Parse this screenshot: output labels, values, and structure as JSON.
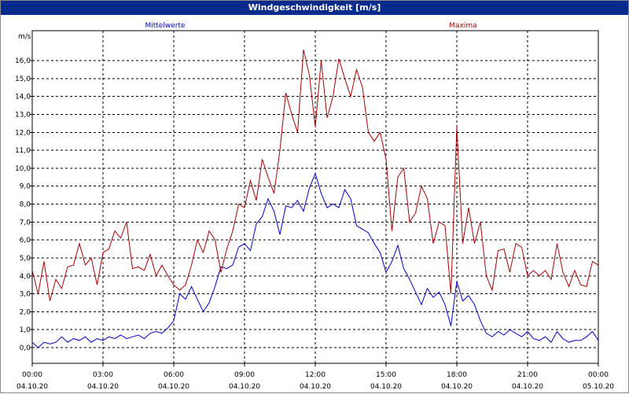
{
  "window": {
    "title": "Windgeschwindigkeit [m/s]"
  },
  "chart_data": {
    "type": "line",
    "title": "Windgeschwindigkeit [m/s]",
    "ylabel": "m/s",
    "ylim": [
      -1,
      17
    ],
    "yticks": [
      "0,0",
      "1,0",
      "2,0",
      "3,0",
      "4,0",
      "5,0",
      "6,0",
      "7,0",
      "8,0",
      "9,0",
      "10,0",
      "11,0",
      "12,0",
      "13,0",
      "14,0",
      "15,0",
      "16,0"
    ],
    "xlim": [
      0,
      24
    ],
    "xticks": [
      {
        "time": "00:00",
        "date": "04.10.20"
      },
      {
        "time": "03:00",
        "date": "04.10.20"
      },
      {
        "time": "06:00",
        "date": "04.10.20"
      },
      {
        "time": "09:00",
        "date": "04.10.20"
      },
      {
        "time": "12:00",
        "date": "04.10.20"
      },
      {
        "time": "15:00",
        "date": "04.10.20"
      },
      {
        "time": "18:00",
        "date": "04.10.20"
      },
      {
        "time": "21:00",
        "date": "04.10.20"
      },
      {
        "time": "00:00",
        "date": "05.10.20"
      }
    ],
    "grid": true,
    "series": [
      {
        "name": "Mittelwerte",
        "color": "#0000cc",
        "x": [
          0.0,
          0.25,
          0.5,
          0.75,
          1.0,
          1.25,
          1.5,
          1.75,
          2.0,
          2.25,
          2.5,
          2.75,
          3.0,
          3.25,
          3.5,
          3.75,
          4.0,
          4.25,
          4.5,
          4.75,
          5.0,
          5.25,
          5.5,
          5.75,
          6.0,
          6.25,
          6.5,
          6.75,
          7.0,
          7.25,
          7.5,
          7.75,
          8.0,
          8.25,
          8.5,
          8.75,
          9.0,
          9.25,
          9.5,
          9.75,
          10.0,
          10.25,
          10.5,
          10.75,
          11.0,
          11.25,
          11.5,
          11.75,
          12.0,
          12.25,
          12.5,
          12.75,
          13.0,
          13.25,
          13.5,
          13.75,
          14.0,
          14.25,
          14.5,
          14.75,
          15.0,
          15.25,
          15.5,
          15.75,
          16.0,
          16.25,
          16.5,
          16.75,
          17.0,
          17.25,
          17.5,
          17.75,
          18.0,
          18.25,
          18.5,
          18.75,
          19.0,
          19.25,
          19.5,
          19.75,
          20.0,
          20.25,
          20.5,
          20.75,
          21.0,
          21.25,
          21.5,
          21.75,
          22.0,
          22.25,
          22.5,
          22.75,
          23.0,
          23.25,
          23.5,
          23.75,
          24.0
        ],
        "values": [
          0.3,
          0.0,
          0.3,
          0.2,
          0.3,
          0.6,
          0.3,
          0.5,
          0.4,
          0.6,
          0.3,
          0.5,
          0.4,
          0.6,
          0.5,
          0.7,
          0.5,
          0.6,
          0.7,
          0.5,
          0.8,
          0.9,
          0.8,
          1.1,
          1.5,
          3.0,
          2.7,
          3.4,
          2.7,
          2.0,
          2.5,
          3.4,
          4.5,
          4.4,
          4.6,
          5.6,
          5.8,
          5.4,
          6.9,
          7.3,
          8.3,
          7.6,
          6.3,
          7.9,
          7.8,
          8.2,
          7.6,
          8.9,
          9.7,
          8.6,
          7.8,
          8.0,
          7.8,
          8.8,
          8.3,
          6.8,
          6.6,
          6.4,
          5.8,
          5.3,
          4.2,
          4.8,
          5.7,
          4.4,
          3.8,
          3.1,
          2.4,
          3.3,
          2.8,
          3.1,
          2.4,
          1.2,
          3.7,
          2.6,
          2.9,
          2.4,
          1.5,
          0.8,
          0.6,
          0.9,
          0.7,
          1.0,
          0.8,
          0.6,
          0.9,
          0.5,
          0.4,
          0.6,
          0.3,
          0.9,
          0.5,
          0.3,
          0.4,
          0.4,
          0.6,
          0.9,
          0.4
        ]
      },
      {
        "name": "Maxima",
        "color": "#aa0000",
        "x": [
          0.0,
          0.25,
          0.5,
          0.75,
          1.0,
          1.25,
          1.5,
          1.75,
          2.0,
          2.25,
          2.5,
          2.75,
          3.0,
          3.25,
          3.5,
          3.75,
          4.0,
          4.25,
          4.5,
          4.75,
          5.0,
          5.25,
          5.5,
          5.75,
          6.0,
          6.25,
          6.5,
          6.75,
          7.0,
          7.25,
          7.5,
          7.75,
          8.0,
          8.25,
          8.5,
          8.75,
          9.0,
          9.25,
          9.5,
          9.75,
          10.0,
          10.25,
          10.5,
          10.75,
          11.0,
          11.25,
          11.5,
          11.75,
          12.0,
          12.25,
          12.5,
          12.75,
          13.0,
          13.25,
          13.5,
          13.75,
          14.0,
          14.25,
          14.5,
          14.75,
          15.0,
          15.25,
          15.5,
          15.75,
          16.0,
          16.25,
          16.5,
          16.75,
          17.0,
          17.25,
          17.5,
          17.75,
          18.0,
          18.25,
          18.5,
          18.75,
          19.0,
          19.25,
          19.5,
          19.75,
          20.0,
          20.25,
          20.5,
          20.75,
          21.0,
          21.25,
          21.5,
          21.75,
          22.0,
          22.25,
          22.5,
          22.75,
          23.0,
          23.25,
          23.5,
          23.75,
          24.0
        ],
        "values": [
          4.3,
          3.0,
          4.8,
          2.6,
          3.8,
          3.3,
          4.5,
          4.6,
          5.8,
          4.6,
          5.0,
          3.5,
          5.3,
          5.5,
          6.5,
          6.1,
          7.0,
          4.4,
          4.5,
          4.3,
          5.2,
          4.0,
          4.6,
          4.0,
          3.5,
          3.2,
          3.5,
          4.6,
          6.0,
          5.3,
          6.5,
          6.0,
          4.2,
          5.5,
          6.5,
          8.0,
          7.8,
          9.3,
          8.2,
          10.5,
          9.5,
          8.6,
          11.0,
          14.2,
          13.0,
          12.0,
          16.6,
          15.2,
          12.3,
          16.0,
          12.8,
          14.0,
          16.1,
          15.0,
          14.0,
          15.5,
          14.5,
          12.0,
          11.5,
          12.0,
          10.5,
          6.5,
          9.5,
          10.0,
          7.0,
          7.5,
          9.0,
          8.3,
          5.8,
          7.0,
          6.8,
          3.0,
          12.3,
          5.8,
          7.8,
          5.8,
          7.0,
          4.0,
          3.2,
          5.4,
          5.5,
          4.2,
          5.8,
          5.6,
          4.0,
          4.3,
          4.0,
          4.3,
          3.8,
          5.8,
          4.2,
          3.4,
          4.3,
          3.5,
          3.4,
          4.8,
          4.6
        ]
      }
    ]
  }
}
